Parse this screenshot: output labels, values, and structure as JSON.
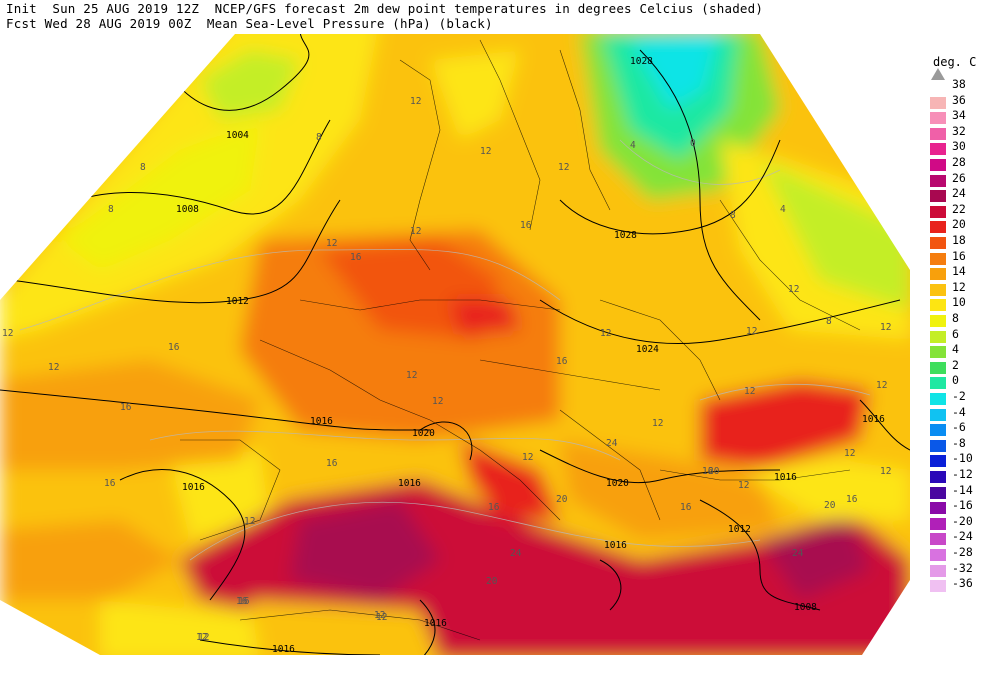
{
  "header": {
    "line1": "Init  Sun 25 AUG 2019 12Z  NCEP/GFS forecast 2m dew point temperatures in degrees Celcius (shaded)",
    "line2": "Fcst Wed 28 AUG 2019 00Z  Mean Sea-Level Pressure (hPa) (black)"
  },
  "legend": {
    "title": "deg. C",
    "bins": [
      {
        "label": "38",
        "color": ""
      },
      {
        "label": "36",
        "color": "#f7b5b5"
      },
      {
        "label": "34",
        "color": "#f78fb8"
      },
      {
        "label": "32",
        "color": "#f060a8"
      },
      {
        "label": "30",
        "color": "#e8248f"
      },
      {
        "label": "28",
        "color": "#d00a86"
      },
      {
        "label": "26",
        "color": "#b8086e"
      },
      {
        "label": "24",
        "color": "#a80850"
      },
      {
        "label": "22",
        "color": "#cc0b38"
      },
      {
        "label": "20",
        "color": "#e8221c"
      },
      {
        "label": "18",
        "color": "#f25410"
      },
      {
        "label": "16",
        "color": "#f57d0e"
      },
      {
        "label": "14",
        "color": "#f8a00c"
      },
      {
        "label": "12",
        "color": "#fbc210"
      },
      {
        "label": "10",
        "color": "#fde512"
      },
      {
        "label": "8",
        "color": "#f0f20e"
      },
      {
        "label": "6",
        "color": "#c4ee26"
      },
      {
        "label": "4",
        "color": "#84e338"
      },
      {
        "label": "2",
        "color": "#3ede5c"
      },
      {
        "label": "0",
        "color": "#1fe8a2"
      },
      {
        "label": "-2",
        "color": "#10e4e6"
      },
      {
        "label": "-4",
        "color": "#10c2f2"
      },
      {
        "label": "-6",
        "color": "#0a8df2"
      },
      {
        "label": "-8",
        "color": "#0a58e8"
      },
      {
        "label": "-10",
        "color": "#0a20d8"
      },
      {
        "label": "-12",
        "color": "#2a08b8"
      },
      {
        "label": "-14",
        "color": "#4a06a0"
      },
      {
        "label": "-16",
        "color": "#8a0aa8"
      },
      {
        "label": "-20",
        "color": "#b020b8"
      },
      {
        "label": "-24",
        "color": "#c848c8"
      },
      {
        "label": "-28",
        "color": "#d872e0"
      },
      {
        "label": "-32",
        "color": "#e49ae8"
      },
      {
        "label": "-36",
        "color": "#f0c0f2"
      }
    ]
  },
  "map": {
    "background": "#ffffff",
    "pressure_labels": [
      "1028",
      "1004",
      "1008",
      "1012",
      "1016",
      "1020",
      "1024",
      "1028",
      "1016",
      "1020",
      "1016",
      "1016",
      "1012",
      "1016",
      "1008",
      "1016",
      "1016",
      "1016"
    ],
    "dewpoint_labels": [
      "8",
      "8",
      "8",
      "12",
      "12",
      "12",
      "12",
      "16",
      "12",
      "16",
      "16",
      "12",
      "12",
      "12",
      "12",
      "16",
      "16",
      "12",
      "16",
      "12",
      "16",
      "12",
      "16",
      "12",
      "16",
      "20",
      "24",
      "24",
      "16",
      "12",
      "16",
      "12",
      "12",
      "12",
      "12",
      "12",
      "8",
      "4",
      "0",
      "4",
      "8",
      "12",
      "12",
      "12",
      "16",
      "20",
      "20",
      "24",
      "20",
      "16",
      "12",
      "12",
      "12"
    ]
  }
}
